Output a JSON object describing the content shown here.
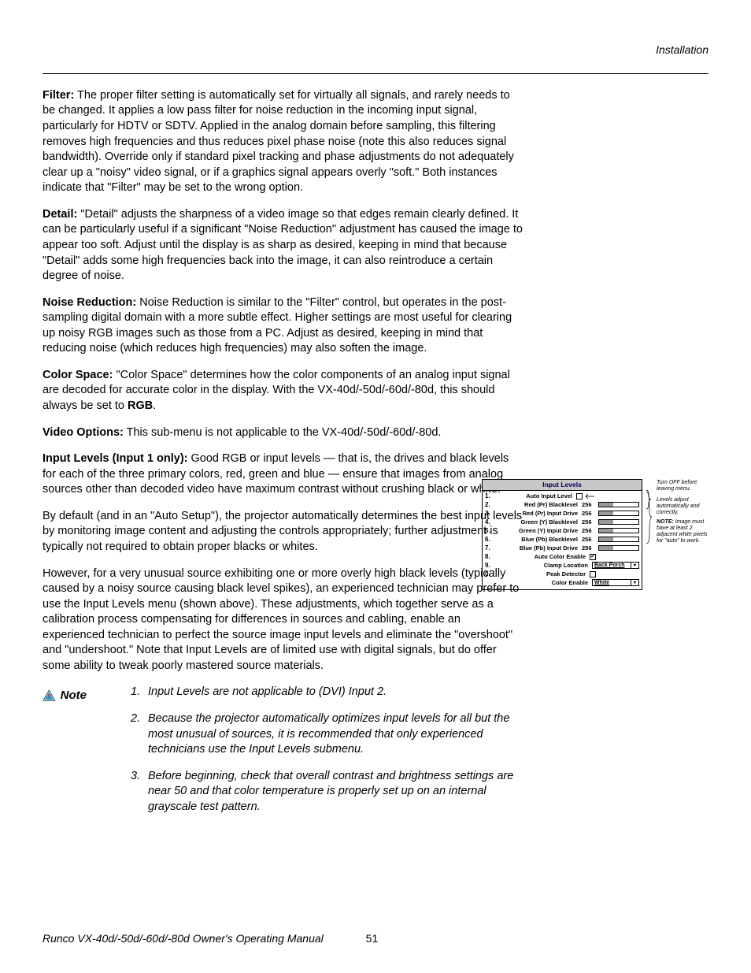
{
  "header": {
    "section": "Installation"
  },
  "paragraphs": {
    "filter": {
      "label": "Filter:",
      "text": " The proper filter setting is automatically set for virtually all signals, and rarely needs to be changed. It applies a low pass filter for noise reduction in the incoming input signal, particularly for HDTV or SDTV. Applied in the analog domain before sampling, this filtering removes high frequencies and thus reduces pixel phase noise (note this also reduces signal bandwidth). Override only if standard pixel tracking and phase adjustments do not adequately clear up a \"noisy\" video signal, or if a graphics signal appears overly \"soft.\" Both instances indicate that \"Filter\" may be set to the wrong option."
    },
    "detail": {
      "label": "Detail:",
      "text": " \"Detail\" adjusts the sharpness of a video image so that edges remain clearly defined. It can be particularly useful if a significant \"Noise Reduction\" adjustment has caused the image to appear too soft. Adjust until the display is as sharp as desired, keeping in mind that because \"Detail\" adds some high frequencies back into the image, it can also reintroduce a certain degree of noise."
    },
    "noise": {
      "label": "Noise Reduction:",
      "text": " Noise Reduction is similar to the \"Filter\" control, but operates in the post-sampling digital domain with a more subtle effect. Higher settings are most useful for clearing up noisy RGB images such as those from a PC. Adjust as desired, keeping in mind that reducing noise (which reduces high frequencies) may also soften the image."
    },
    "cspace": {
      "label": "Color Space:",
      "pre": " \"Color Space\" determines how the color components of an analog input signal are decoded for accurate color in the display. With the VX-40d/-50d/-60d/-80d, this should always be set to ",
      "rgb": "RGB",
      "post": "."
    },
    "vopts": {
      "label": "Video Options:",
      "text": " This sub-menu is not applicable to the VX-40d/-50d/-60d/-80d."
    },
    "ilevels": {
      "label": "Input Levels (Input 1 only):",
      "text": " Good RGB or input levels — that is, the drives and black levels for each of the three primary colors, red, green and blue — ensure that images from analog sources other than decoded video have maximum contrast without crushing black or white."
    },
    "auto": "By default (and in an \"Auto Setup\"), the projector automatically determines the best input levels by monitoring image content and adjusting the controls appropriately; further adjustment is typically not required to obtain proper blacks or whites.",
    "unusual": "However, for a very unusual source exhibiting one or more overly high black levels (typically caused by a noisy source causing black level spikes), an experienced technician may prefer to use the Input Levels menu (shown above). These adjustments, which together serve as a calibration process compensating for differences in sources and cabling, enable an experienced technician to perfect the source image input levels and eliminate the \"overshoot\" and \"undershoot.\" Note that Input Levels are of limited use with digital signals, but do offer some ability to tweak poorly mastered source materials."
  },
  "note": {
    "label": "Note",
    "items": [
      "Input Levels are not applicable to (DVI) Input 2.",
      "Because the projector automatically optimizes input levels for all but the most unusual of sources, it is recommended that only experienced technicians use the Input Levels submenu.",
      "Before beginning, check that overall contrast and brightness settings are near 50 and that color temperature is properly set up on an internal grayscale test pattern."
    ]
  },
  "figure": {
    "title": "Input Levels",
    "rows": [
      {
        "n": "1.",
        "label": "Auto Input Level",
        "type": "cb",
        "checked": false,
        "arrow": true
      },
      {
        "n": "2.",
        "label": "Red (Pr) Blacklevel",
        "type": "slider",
        "val": "256",
        "fill": 35
      },
      {
        "n": "3.",
        "label": "Red (Pr) Input Drive",
        "type": "slider",
        "val": "256",
        "fill": 35
      },
      {
        "n": "4.",
        "label": "Green (Y) Blacklevel",
        "type": "slider",
        "val": "256",
        "fill": 35
      },
      {
        "n": "5.",
        "label": "Green (Y) Input Drive",
        "type": "slider",
        "val": "256",
        "fill": 35
      },
      {
        "n": "6.",
        "label": "Blue (Pb) Blacklevel",
        "type": "slider",
        "val": "256",
        "fill": 35
      },
      {
        "n": "7.",
        "label": "Blue (Pb) Input Drive",
        "type": "slider",
        "val": "256",
        "fill": 35
      },
      {
        "n": "8.",
        "label": "Auto Color Enable",
        "type": "cb",
        "checked": true
      },
      {
        "n": "9.",
        "label": "Clamp Location",
        "type": "dd",
        "ddval": "Back Porch"
      },
      {
        "n": "0.",
        "label": "Peak Detector",
        "type": "cb",
        "checked": false
      },
      {
        "n": "",
        "label": "Color Enable",
        "type": "dd",
        "ddval": "White"
      }
    ],
    "annotations": {
      "a1": "Turn OFF before leaving menu.",
      "a2": "Levels adjust automatically and correctly.",
      "a3_prefix": "NOTE: ",
      "a3": "Image must have at least 2 adjacent white pixels for \"auto\" to work."
    }
  },
  "footer": {
    "text": "Runco VX-40d/-50d/-60d/-80d Owner's Operating Manual",
    "page": "51"
  }
}
